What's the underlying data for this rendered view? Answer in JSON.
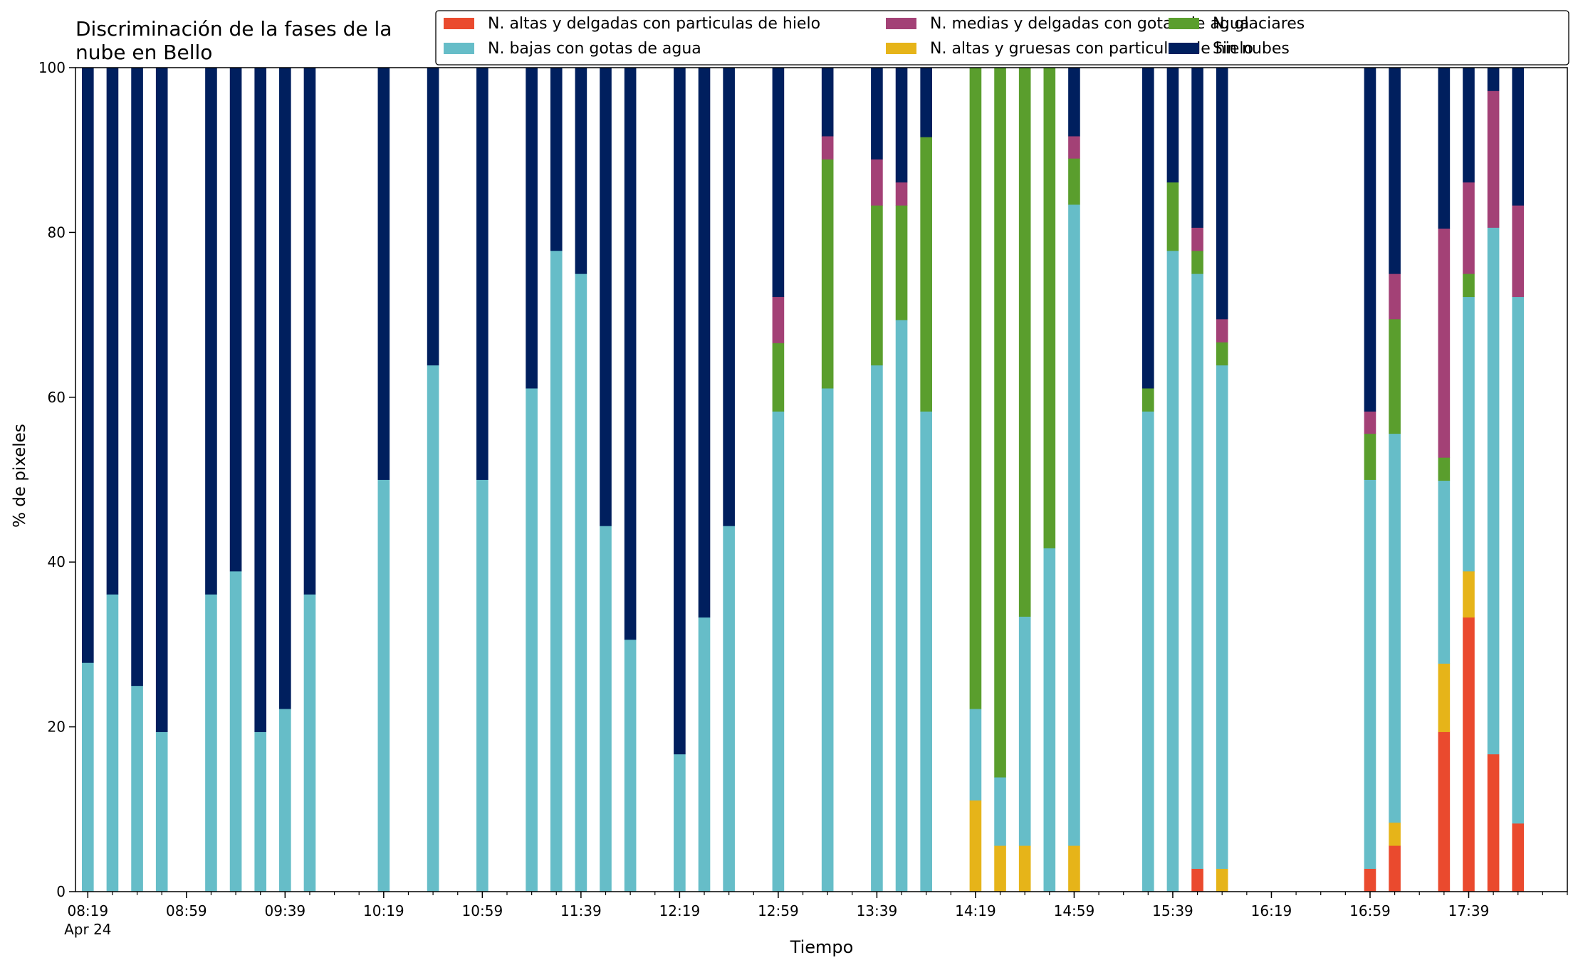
{
  "chart_data": {
    "type": "bar",
    "stacked": true,
    "title": "Discriminación de la fases de la nube en Bello",
    "title_lines": [
      "Discriminación de la fases de la",
      "nube en Bello"
    ],
    "xlabel": "Tiempo",
    "ylabel": "% de pixeles",
    "ylim": [
      0,
      100
    ],
    "yticks": [
      0,
      20,
      40,
      60,
      80,
      100
    ],
    "xlim_minutes": [
      "08:14",
      "18:19"
    ],
    "x_date_label": "Apr 24",
    "xticks": [
      "08:19",
      "08:59",
      "09:39",
      "10:19",
      "10:59",
      "11:39",
      "12:19",
      "12:59",
      "13:39",
      "14:19",
      "14:59",
      "15:39",
      "16:19",
      "16:59",
      "17:39"
    ],
    "bar_width_minutes": 5,
    "legend": {
      "placement": "top-right",
      "columns": 3
    },
    "series": [
      {
        "name": "N. altas y delgadas con particulas de hielo",
        "color": "#ea4a2e"
      },
      {
        "name": "N. altas y gruesas con particulas de hielo",
        "color": "#e6b419"
      },
      {
        "name": "N. bajas con gotas de agua",
        "color": "#66bdc8"
      },
      {
        "name": "N. glaciares",
        "color": "#5a9e2d"
      },
      {
        "name": "N. medias y delgadas con gotas de agua",
        "color": "#a34176"
      },
      {
        "name": "Sin nubes",
        "color": "#001f5e"
      }
    ],
    "legend_order": [
      0,
      2,
      4,
      1,
      3,
      5
    ],
    "bars": [
      {
        "x": "08:19",
        "values": [
          0,
          0,
          27.8,
          0,
          0,
          72.2
        ]
      },
      {
        "x": "08:29",
        "values": [
          0,
          0,
          36.1,
          0,
          0,
          63.9
        ]
      },
      {
        "x": "08:39",
        "values": [
          0,
          0,
          25.0,
          0,
          0,
          75.0
        ]
      },
      {
        "x": "08:49",
        "values": [
          0,
          0,
          19.4,
          0,
          0,
          80.6
        ]
      },
      {
        "x": "09:09",
        "values": [
          0,
          0,
          36.1,
          0,
          0,
          63.9
        ]
      },
      {
        "x": "09:19",
        "values": [
          0,
          0,
          38.9,
          0,
          0,
          61.1
        ]
      },
      {
        "x": "09:29",
        "values": [
          0,
          0,
          19.4,
          0,
          0,
          80.6
        ]
      },
      {
        "x": "09:39",
        "values": [
          0,
          0,
          22.2,
          0,
          0,
          77.8
        ]
      },
      {
        "x": "09:49",
        "values": [
          0,
          0,
          36.1,
          0,
          0,
          63.9
        ]
      },
      {
        "x": "10:19",
        "values": [
          0,
          0,
          50.0,
          0,
          0,
          50.0
        ]
      },
      {
        "x": "10:39",
        "values": [
          0,
          0,
          63.9,
          0,
          0,
          36.1
        ]
      },
      {
        "x": "10:59",
        "values": [
          0,
          0,
          50.0,
          0,
          0,
          50.0
        ]
      },
      {
        "x": "11:19",
        "values": [
          0,
          0,
          61.1,
          0,
          0,
          38.9
        ]
      },
      {
        "x": "11:29",
        "values": [
          0,
          0,
          77.8,
          0,
          0,
          22.2
        ]
      },
      {
        "x": "11:39",
        "values": [
          0,
          0,
          75.0,
          0,
          0,
          25.0
        ]
      },
      {
        "x": "11:49",
        "values": [
          0,
          0,
          44.4,
          0,
          0,
          55.6
        ]
      },
      {
        "x": "11:59",
        "values": [
          0,
          0,
          30.6,
          0,
          0,
          69.4
        ]
      },
      {
        "x": "12:19",
        "values": [
          0,
          0,
          16.7,
          0,
          0,
          83.3
        ]
      },
      {
        "x": "12:29",
        "values": [
          0,
          0,
          33.3,
          0,
          0,
          66.7
        ]
      },
      {
        "x": "12:39",
        "values": [
          0,
          0,
          44.4,
          0,
          0,
          55.6
        ]
      },
      {
        "x": "12:59",
        "values": [
          0,
          0,
          58.3,
          8.3,
          5.6,
          27.8
        ]
      },
      {
        "x": "13:19",
        "values": [
          0,
          0,
          61.1,
          27.8,
          2.8,
          8.3
        ]
      },
      {
        "x": "13:39",
        "values": [
          0,
          0,
          63.9,
          19.4,
          5.6,
          11.1
        ]
      },
      {
        "x": "13:49",
        "values": [
          0,
          0,
          69.4,
          13.9,
          2.8,
          13.9
        ]
      },
      {
        "x": "13:59",
        "values": [
          0,
          0,
          58.3,
          33.3,
          0,
          8.4
        ]
      },
      {
        "x": "14:19",
        "values": [
          0,
          11.1,
          11.1,
          77.8,
          0,
          0
        ]
      },
      {
        "x": "14:29",
        "values": [
          0,
          5.6,
          8.3,
          86.1,
          0,
          0
        ]
      },
      {
        "x": "14:39",
        "values": [
          0,
          5.6,
          27.8,
          66.6,
          0,
          0
        ]
      },
      {
        "x": "14:49",
        "values": [
          0,
          0,
          41.7,
          58.3,
          0,
          0
        ]
      },
      {
        "x": "14:59",
        "values": [
          0,
          5.6,
          77.8,
          5.6,
          2.7,
          8.3
        ]
      },
      {
        "x": "15:29",
        "values": [
          0,
          0,
          58.3,
          2.8,
          0,
          38.9
        ]
      },
      {
        "x": "15:39",
        "values": [
          0,
          0,
          77.8,
          8.3,
          0,
          13.9
        ]
      },
      {
        "x": "15:49",
        "values": [
          2.8,
          0,
          72.2,
          2.8,
          2.8,
          19.4
        ]
      },
      {
        "x": "15:59",
        "values": [
          0,
          2.8,
          61.1,
          2.8,
          2.8,
          30.5
        ]
      },
      {
        "x": "16:59",
        "values": [
          2.8,
          0,
          47.2,
          5.6,
          2.7,
          41.7
        ]
      },
      {
        "x": "17:09",
        "values": [
          5.6,
          2.8,
          47.2,
          13.9,
          5.5,
          25.0
        ]
      },
      {
        "x": "17:29",
        "values": [
          19.4,
          8.3,
          22.2,
          2.8,
          27.8,
          19.5
        ]
      },
      {
        "x": "17:39",
        "values": [
          33.3,
          5.6,
          33.3,
          2.8,
          11.1,
          13.9
        ]
      },
      {
        "x": "17:49",
        "values": [
          16.7,
          0,
          63.9,
          0,
          16.6,
          2.8
        ]
      },
      {
        "x": "17:59",
        "values": [
          8.3,
          0,
          63.9,
          0,
          11.1,
          16.7
        ]
      }
    ]
  }
}
